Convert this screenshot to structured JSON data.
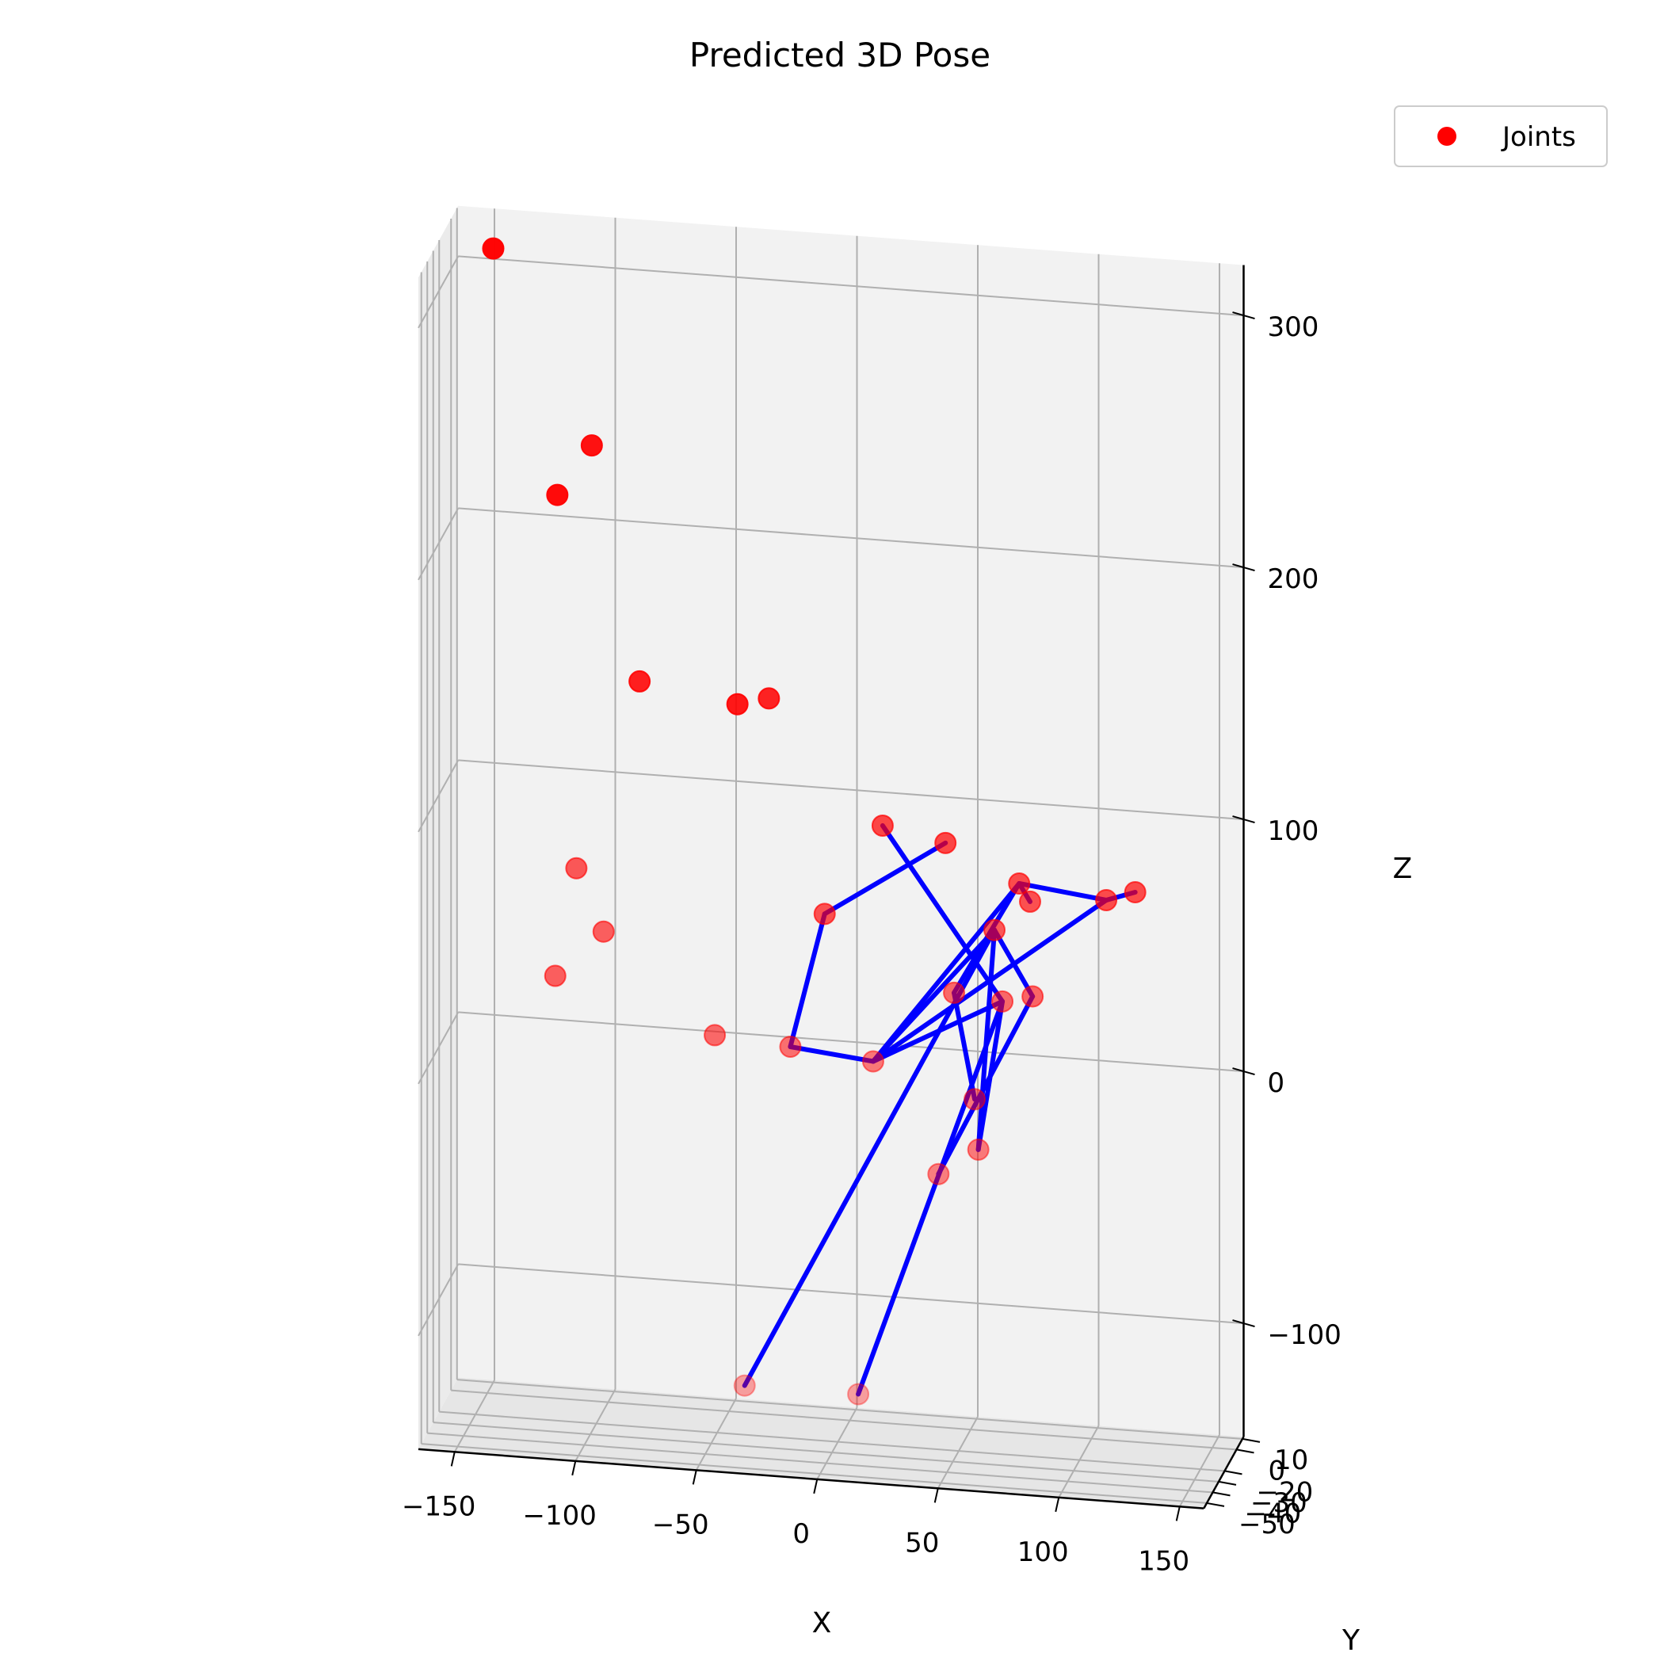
{
  "chart_data": {
    "type": "scatter",
    "title": "Predicted 3D Pose",
    "xlabel": "X",
    "ylabel": "Y",
    "zlabel": "Z",
    "xlim": [
      -165,
      160
    ],
    "ylim": [
      -55,
      12
    ],
    "zlim": [
      -145,
      320
    ],
    "x_ticks": [
      "−150",
      "−100",
      "−50",
      "0",
      "50",
      "100",
      "150"
    ],
    "y_ticks": [
      "−50",
      "−40",
      "−30",
      "−20",
      "0",
      "10"
    ],
    "z_ticks": [
      "−100",
      "0",
      "100",
      "200",
      "300"
    ],
    "grid": true,
    "legend": {
      "position": "top-right",
      "entries": [
        "Joints"
      ]
    },
    "series": [
      {
        "name": "Joints",
        "kind": "points",
        "color": "#ff0000",
        "points": [
          {
            "x": -150,
            "y": 10,
            "z": 305
          },
          {
            "x": -108,
            "y": 5,
            "z": 232
          },
          {
            "x": -123,
            "y": 8,
            "z": 210
          },
          {
            "x": -87,
            "y": 0,
            "z": 142
          },
          {
            "x": -47,
            "y": 2,
            "z": 135
          },
          {
            "x": -33,
            "y": -2,
            "z": 140
          },
          {
            "x": -107,
            "y": -25,
            "z": 77
          },
          {
            "x": -95,
            "y": -28,
            "z": 54
          },
          {
            "x": -115,
            "y": -28,
            "z": 35
          },
          {
            "x": -48,
            "y": -32,
            "z": 18
          },
          {
            "x": -16,
            "y": -35,
            "z": 17
          },
          {
            "x": 19,
            "y": -38,
            "z": 15
          },
          {
            "x": 18,
            "y": -18,
            "z": 100
          },
          {
            "x": 44,
            "y": -18,
            "z": 95
          },
          {
            "x": -5,
            "y": -22,
            "z": 65
          },
          {
            "x": 75,
            "y": -20,
            "z": 82
          },
          {
            "x": 80,
            "y": -22,
            "z": 76
          },
          {
            "x": 66,
            "y": -25,
            "z": 65
          },
          {
            "x": 111,
            "y": -20,
            "z": 78
          },
          {
            "x": 123,
            "y": -20,
            "z": 82
          },
          {
            "x": 51,
            "y": -32,
            "z": 42
          },
          {
            "x": 71,
            "y": -32,
            "z": 40
          },
          {
            "x": 83,
            "y": -30,
            "z": 42
          },
          {
            "x": 61,
            "y": -38,
            "z": 3
          },
          {
            "x": 63,
            "y": -40,
            "z": -16
          },
          {
            "x": 47,
            "y": -42,
            "z": -26
          },
          {
            "x": -30,
            "y": -55,
            "z": -110
          },
          {
            "x": 17,
            "y": -55,
            "z": -110
          }
        ]
      },
      {
        "name": "",
        "kind": "bones",
        "color": "#0000ff",
        "segments": [
          [
            {
              "x": -5,
              "y": -22,
              "z": 65
            },
            {
              "x": 44,
              "y": -18,
              "z": 95
            }
          ],
          [
            {
              "x": -5,
              "y": -22,
              "z": 65
            },
            {
              "x": -16,
              "y": -35,
              "z": 17
            }
          ],
          [
            {
              "x": -16,
              "y": -35,
              "z": 17
            },
            {
              "x": 19,
              "y": -38,
              "z": 15
            }
          ],
          [
            {
              "x": 19,
              "y": -38,
              "z": 15
            },
            {
              "x": 75,
              "y": -20,
              "z": 82
            }
          ],
          [
            {
              "x": 19,
              "y": -38,
              "z": 15
            },
            {
              "x": 71,
              "y": -32,
              "z": 40
            }
          ],
          [
            {
              "x": 19,
              "y": -38,
              "z": 15
            },
            {
              "x": 111,
              "y": -20,
              "z": 78
            }
          ],
          [
            {
              "x": 19,
              "y": -38,
              "z": 15
            },
            {
              "x": 66,
              "y": -25,
              "z": 65
            }
          ],
          [
            {
              "x": 75,
              "y": -20,
              "z": 82
            },
            {
              "x": 80,
              "y": -22,
              "z": 76
            }
          ],
          [
            {
              "x": 75,
              "y": -20,
              "z": 82
            },
            {
              "x": 51,
              "y": -32,
              "z": 42
            }
          ],
          [
            {
              "x": 111,
              "y": -20,
              "z": 78
            },
            {
              "x": 123,
              "y": -20,
              "z": 82
            }
          ],
          [
            {
              "x": 111,
              "y": -20,
              "z": 78
            },
            {
              "x": 75,
              "y": -20,
              "z": 82
            }
          ],
          [
            {
              "x": 18,
              "y": -18,
              "z": 100
            },
            {
              "x": 71,
              "y": -32,
              "z": 40
            }
          ],
          [
            {
              "x": 66,
              "y": -25,
              "z": 65
            },
            {
              "x": 83,
              "y": -30,
              "z": 42
            }
          ],
          [
            {
              "x": 66,
              "y": -25,
              "z": 65
            },
            {
              "x": 63,
              "y": -40,
              "z": -16
            }
          ],
          [
            {
              "x": 71,
              "y": -32,
              "z": 40
            },
            {
              "x": 63,
              "y": -40,
              "z": -16
            }
          ],
          [
            {
              "x": 51,
              "y": -32,
              "z": 42
            },
            {
              "x": 61,
              "y": -38,
              "z": 3
            }
          ],
          [
            {
              "x": 83,
              "y": -30,
              "z": 42
            },
            {
              "x": 47,
              "y": -42,
              "z": -26
            }
          ],
          [
            {
              "x": 66,
              "y": -25,
              "z": 65
            },
            {
              "x": -30,
              "y": -55,
              "z": -110
            }
          ],
          [
            {
              "x": 71,
              "y": -32,
              "z": 40
            },
            {
              "x": 17,
              "y": -55,
              "z": -110
            }
          ]
        ]
      }
    ]
  }
}
